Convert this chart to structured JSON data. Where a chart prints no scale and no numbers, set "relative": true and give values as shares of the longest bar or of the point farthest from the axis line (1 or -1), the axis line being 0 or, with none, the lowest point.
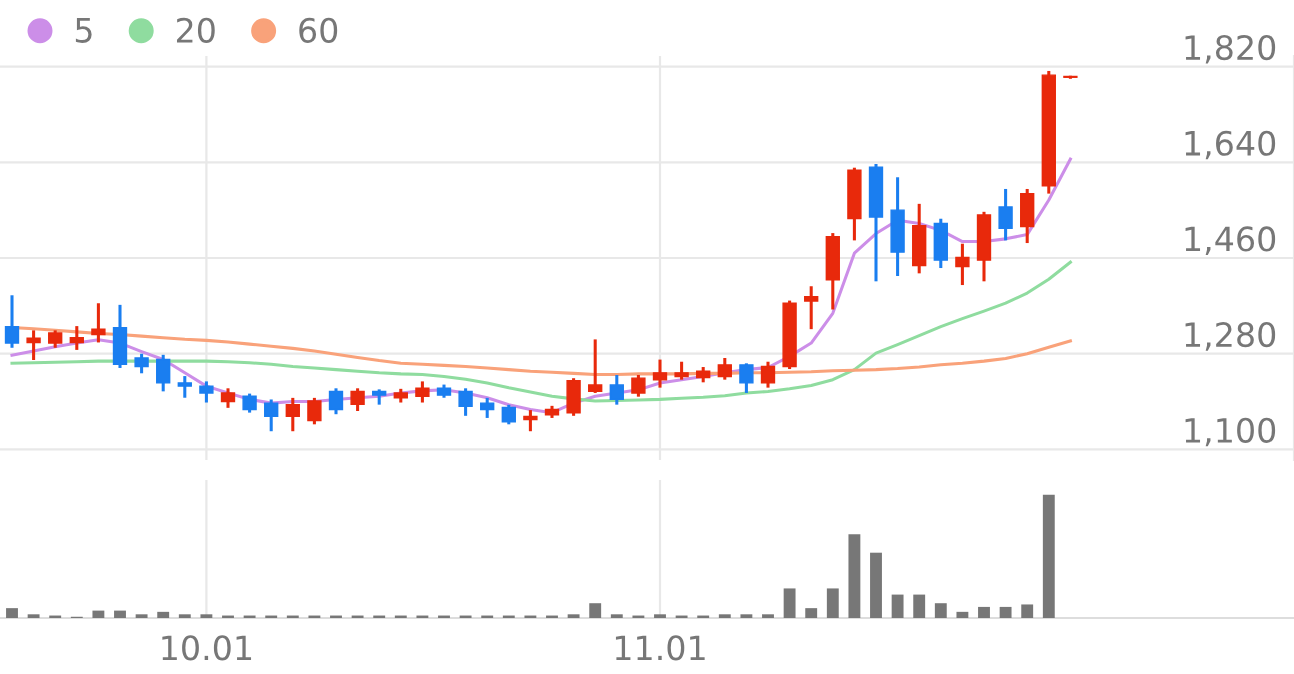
{
  "chart_data": [
    {
      "type": "candlestick",
      "categories": [
        null,
        null,
        null,
        null,
        null,
        null,
        null,
        null,
        null,
        "10.01",
        null,
        null,
        null,
        null,
        null,
        null,
        null,
        null,
        null,
        null,
        null,
        null,
        null,
        null,
        null,
        null,
        null,
        null,
        null,
        null,
        "11.01",
        null,
        null,
        null,
        null,
        null,
        null,
        null,
        null,
        null,
        null,
        null,
        null,
        null,
        null,
        null,
        null,
        null,
        null,
        null
      ],
      "ohlc": [
        [
          1331,
          1387,
          1294,
          1300
        ],
        [
          1301,
          1321,
          1271,
          1309
        ],
        [
          1300,
          1321,
          1294,
          1319
        ],
        [
          1301,
          1329,
          1290,
          1310
        ],
        [
          1316,
          1372,
          1304,
          1326
        ],
        [
          1329,
          1369,
          1256,
          1260
        ],
        [
          1272,
          1277,
          1246,
          1256
        ],
        [
          1269,
          1275,
          1212,
          1225
        ],
        [
          1225,
          1235,
          1200,
          1219
        ],
        [
          1219,
          1225,
          1191,
          1206
        ],
        [
          1190,
          1212,
          1181,
          1206
        ],
        [
          1200,
          1202,
          1172,
          1175
        ],
        [
          1187,
          1191,
          1137,
          1162
        ],
        [
          1162,
          1194,
          1137,
          1184
        ],
        [
          1154,
          1194,
          1150,
          1191
        ],
        [
          1209,
          1212,
          1169,
          1175
        ],
        [
          1185,
          1212,
          1175,
          1209
        ],
        [
          1209,
          1210,
          1187,
          1202
        ],
        [
          1197,
          1211,
          1191,
          1206
        ],
        [
          1200,
          1225,
          1191,
          1215
        ],
        [
          1215,
          1219,
          1200,
          1202
        ],
        [
          1209,
          1212,
          1166,
          1181
        ],
        [
          1187,
          1194,
          1162,
          1175
        ],
        [
          1179,
          1181,
          1150,
          1152
        ],
        [
          1156,
          1171,
          1137,
          1162
        ],
        [
          1165,
          1179,
          1162,
          1175
        ],
        [
          1169,
          1231,
          1166,
          1229
        ],
        [
          1209,
          1304,
          1209,
          1221
        ],
        [
          1221,
          1237,
          1187,
          1194
        ],
        [
          1206,
          1237,
          1202,
          1234
        ],
        [
          1231,
          1266,
          1219,
          1244
        ],
        [
          1237,
          1262,
          1234,
          1244
        ],
        [
          1235,
          1252,
          1229,
          1247
        ],
        [
          1237,
          1269,
          1234,
          1259
        ],
        [
          1259,
          1259,
          1209,
          1225
        ],
        [
          1225,
          1262,
          1219,
          1256
        ],
        [
          1256,
          1377,
          1254,
          1375
        ],
        [
          1379,
          1404,
          1329,
          1387
        ],
        [
          1419,
          1504,
          1366,
          1500
        ],
        [
          1534,
          1627,
          1496,
          1625
        ],
        [
          1631,
          1634,
          1419,
          1537
        ],
        [
          1550,
          1609,
          1429,
          1471
        ],
        [
          1446,
          1559,
          1434,
          1521
        ],
        [
          1525,
          1531,
          1444,
          1456
        ],
        [
          1444,
          1484,
          1412,
          1461
        ],
        [
          1456,
          1544,
          1419,
          1541
        ],
        [
          1556,
          1587,
          1496,
          1516
        ],
        [
          1519,
          1587,
          1491,
          1581
        ],
        [
          1596,
          1809,
          1584,
          1804
        ],
        [
          1800,
          1800,
          1800,
          1800
        ]
      ],
      "colors": [
        "#1a7ef0",
        "#e8290b",
        "#e8290b",
        "#e8290b",
        "#e8290b",
        "#1a7ef0",
        "#1a7ef0",
        "#1a7ef0",
        "#1a7ef0",
        "#1a7ef0",
        "#e8290b",
        "#1a7ef0",
        "#1a7ef0",
        "#e8290b",
        "#e8290b",
        "#1a7ef0",
        "#e8290b",
        "#1a7ef0",
        "#e8290b",
        "#e8290b",
        "#1a7ef0",
        "#1a7ef0",
        "#1a7ef0",
        "#1a7ef0",
        "#e8290b",
        "#e8290b",
        "#e8290b",
        "#e8290b",
        "#1a7ef0",
        "#e8290b",
        "#e8290b",
        "#e8290b",
        "#e8290b",
        "#e8290b",
        "#1a7ef0",
        "#e8290b",
        "#e8290b",
        "#e8290b",
        "#e8290b",
        "#e8290b",
        "#1a7ef0",
        "#1a7ef0",
        "#e8290b",
        "#1a7ef0",
        "#e8290b",
        "#e8290b",
        "#1a7ef0",
        "#e8290b",
        "#e8290b",
        "#e8290b"
      ],
      "series": [
        {
          "name": "5",
          "type": "line",
          "color": "#cc8ee8",
          "values": [
            1277,
            1285,
            1293,
            1300,
            1306,
            1300,
            1284,
            1269,
            1244,
            1219,
            1206,
            1194,
            1187,
            1190,
            1190,
            1194,
            1197,
            1200,
            1206,
            1210,
            1212,
            1206,
            1197,
            1184,
            1175,
            1169,
            1187,
            1200,
            1206,
            1212,
            1225,
            1231,
            1237,
            1244,
            1250,
            1254,
            1275,
            1300,
            1356,
            1469,
            1506,
            1531,
            1525,
            1512,
            1491,
            1491,
            1496,
            1504,
            1569,
            1646
          ]
        },
        {
          "name": "20",
          "type": "line",
          "color": "#8fdc9f",
          "values": [
            1262,
            1263,
            1264,
            1265,
            1266,
            1266,
            1266,
            1266,
            1266,
            1266,
            1265,
            1263,
            1260,
            1256,
            1253,
            1250,
            1247,
            1244,
            1242,
            1241,
            1237,
            1232,
            1225,
            1216,
            1208,
            1200,
            1195,
            1191,
            1192,
            1193,
            1194,
            1196,
            1198,
            1201,
            1206,
            1209,
            1214,
            1220,
            1231,
            1250,
            1281,
            1297,
            1314,
            1331,
            1346,
            1360,
            1375,
            1394,
            1420,
            1452
          ]
        },
        {
          "name": "60",
          "type": "line",
          "color": "#f9a27a",
          "values": [
            1329,
            1327,
            1324,
            1321,
            1318,
            1316,
            1313,
            1310,
            1307,
            1305,
            1302,
            1298,
            1294,
            1290,
            1285,
            1279,
            1273,
            1267,
            1262,
            1260,
            1258,
            1256,
            1253,
            1250,
            1247,
            1245,
            1243,
            1241,
            1241,
            1242,
            1242,
            1242,
            1243,
            1243,
            1244,
            1244,
            1245,
            1246,
            1248,
            1249,
            1250,
            1252,
            1255,
            1259,
            1262,
            1266,
            1271,
            1280,
            1292,
            1304
          ]
        }
      ],
      "ylim": [
        1080,
        1840
      ],
      "yticks": [
        {
          "value": 1100,
          "label": "1,100"
        },
        {
          "value": 1280,
          "label": "1,280"
        },
        {
          "value": 1460,
          "label": "1,460"
        },
        {
          "value": 1640,
          "label": "1,640"
        },
        {
          "value": 1820,
          "label": "1,820"
        }
      ],
      "grid": true,
      "legend": "top left",
      "tick_labels": "y"
    },
    {
      "type": "bar",
      "relative": true,
      "categories": [
        null,
        null,
        null,
        null,
        null,
        null,
        null,
        null,
        null,
        "10.01",
        null,
        null,
        null,
        null,
        null,
        null,
        null,
        null,
        null,
        null,
        null,
        null,
        null,
        null,
        null,
        null,
        null,
        null,
        null,
        null,
        "11.01",
        null,
        null,
        null,
        null,
        null,
        null,
        null,
        null,
        null,
        null,
        null,
        null,
        null,
        null,
        null,
        null,
        null,
        null,
        null
      ],
      "values": [
        0.08,
        0.03,
        0.02,
        0.01,
        0.06,
        0.06,
        0.03,
        0.05,
        0.03,
        0.03,
        0.02,
        0.02,
        0.02,
        0.02,
        0.02,
        0.02,
        0.02,
        0.02,
        0.02,
        0.02,
        0.02,
        0.02,
        0.02,
        0.02,
        0.02,
        0.02,
        0.03,
        0.12,
        0.03,
        0.02,
        0.03,
        0.02,
        0.02,
        0.03,
        0.03,
        0.03,
        0.24,
        0.08,
        0.24,
        0.68,
        0.53,
        0.19,
        0.19,
        0.12,
        0.05,
        0.09,
        0.09,
        0.11,
        1,
        0
      ],
      "color": "#777777",
      "grid": "x",
      "tick_labels": "x"
    }
  ]
}
